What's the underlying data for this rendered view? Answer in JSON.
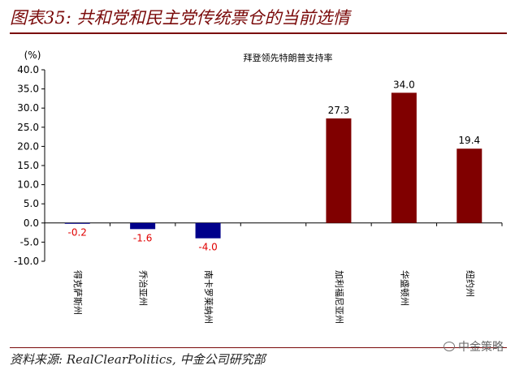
{
  "header": {
    "title": "图表35: 共和党和民主党传统票仓的当前选情"
  },
  "footer": {
    "source": "资料来源: RealClearPolitics, 中金公司研究部",
    "watermark": "中金策略"
  },
  "chart_data": {
    "type": "bar",
    "title": "拜登领先特朗普支持率",
    "ylabel": "(%)",
    "ylim": [
      -10,
      40
    ],
    "yticks": [
      "40.0",
      "35.0",
      "30.0",
      "25.0",
      "20.0",
      "15.0",
      "10.0",
      "5.0",
      "0.0",
      "-5.0",
      "-10.0"
    ],
    "categories": [
      "得克萨斯州",
      "乔治亚州",
      "南卡罗莱纳州",
      "",
      "加利福尼亚州",
      "华盛顿州",
      "纽约州"
    ],
    "values": [
      -0.2,
      -1.6,
      -4.0,
      null,
      27.3,
      34.0,
      19.4
    ],
    "data_labels": [
      "-0.2",
      "-1.6",
      "-4.0",
      "",
      "27.3",
      "34.0",
      "19.4"
    ],
    "colors": {
      "negative_bar": "#00008b",
      "positive_bar": "#800000",
      "negative_label": "#e00000",
      "positive_label": "#000000"
    }
  }
}
